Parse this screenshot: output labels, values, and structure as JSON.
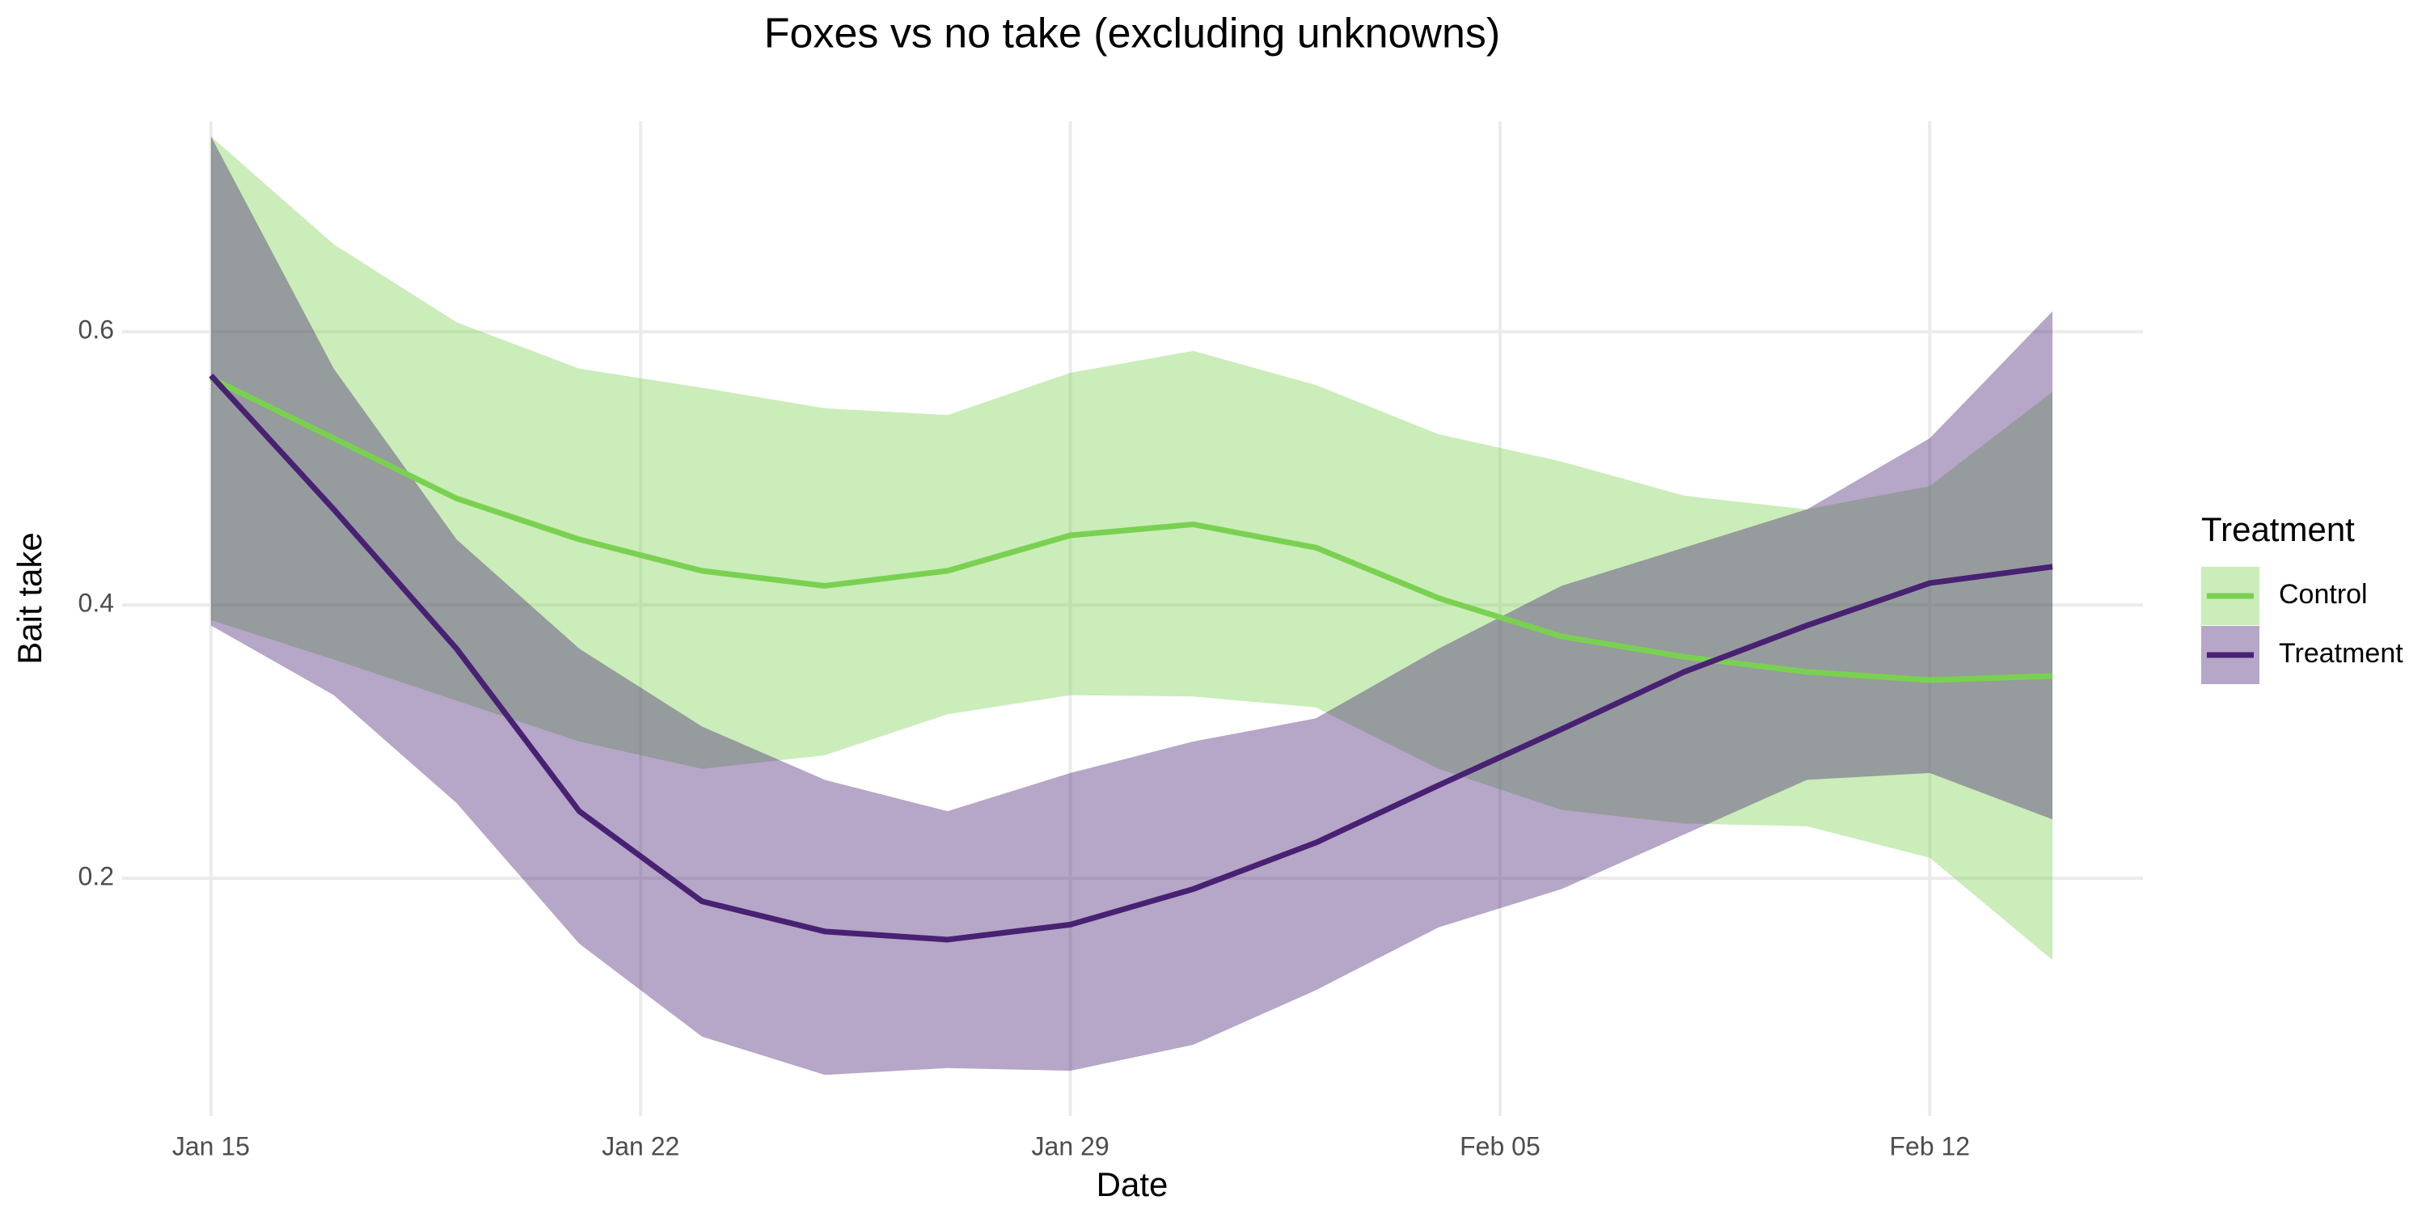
{
  "chart_data": {
    "type": "line",
    "title": "Foxes vs no take (excluding unknowns)",
    "x_label": "Date",
    "y_label": "Bait take",
    "legend_title": "Treatment",
    "x": [
      "Jan 15",
      "Jan 17",
      "Jan 19",
      "Jan 21",
      "Jan 23",
      "Jan 25",
      "Jan 27",
      "Jan 29",
      "Jan 31",
      "Feb 02",
      "Feb 04",
      "Feb 06",
      "Feb 08",
      "Feb 10",
      "Feb 12",
      "Feb 14"
    ],
    "series": [
      {
        "name": "Control",
        "color": "#7ad151",
        "values": [
          0.566,
          0.522,
          0.478,
          0.448,
          0.425,
          0.414,
          0.425,
          0.451,
          0.459,
          0.442,
          0.405,
          0.377,
          0.362,
          0.351,
          0.345,
          0.348
        ],
        "lower": [
          0.389,
          0.36,
          0.33,
          0.3,
          0.28,
          0.29,
          0.32,
          0.334,
          0.333,
          0.325,
          0.28,
          0.25,
          0.24,
          0.238,
          0.215,
          0.14
        ],
        "upper": [
          0.743,
          0.664,
          0.607,
          0.573,
          0.559,
          0.544,
          0.539,
          0.57,
          0.586,
          0.561,
          0.525,
          0.505,
          0.48,
          0.47,
          0.487,
          0.556
        ]
      },
      {
        "name": "Treatment",
        "color": "#482173",
        "values": [
          0.568,
          0.47,
          0.368,
          0.249,
          0.183,
          0.161,
          0.155,
          0.166,
          0.192,
          0.226,
          0.268,
          0.309,
          0.351,
          0.385,
          0.416,
          0.428
        ],
        "lower": [
          0.385,
          0.334,
          0.255,
          0.152,
          0.084,
          0.056,
          0.061,
          0.059,
          0.078,
          0.118,
          0.164,
          0.192,
          0.232,
          0.272,
          0.277,
          0.243
        ],
        "upper": [
          0.743,
          0.573,
          0.448,
          0.368,
          0.311,
          0.272,
          0.249,
          0.277,
          0.3,
          0.317,
          0.368,
          0.414,
          0.442,
          0.47,
          0.522,
          0.615
        ]
      }
    ],
    "xlim": [
      "Jan 14",
      "Feb 15"
    ],
    "xticks": [
      "Jan 15",
      "Jan 22",
      "Jan 29",
      "Feb 05",
      "Feb 12"
    ],
    "ylim": [
      0.02,
      0.76
    ],
    "yticks": [
      0.2,
      0.4,
      0.6
    ],
    "grid": true
  }
}
